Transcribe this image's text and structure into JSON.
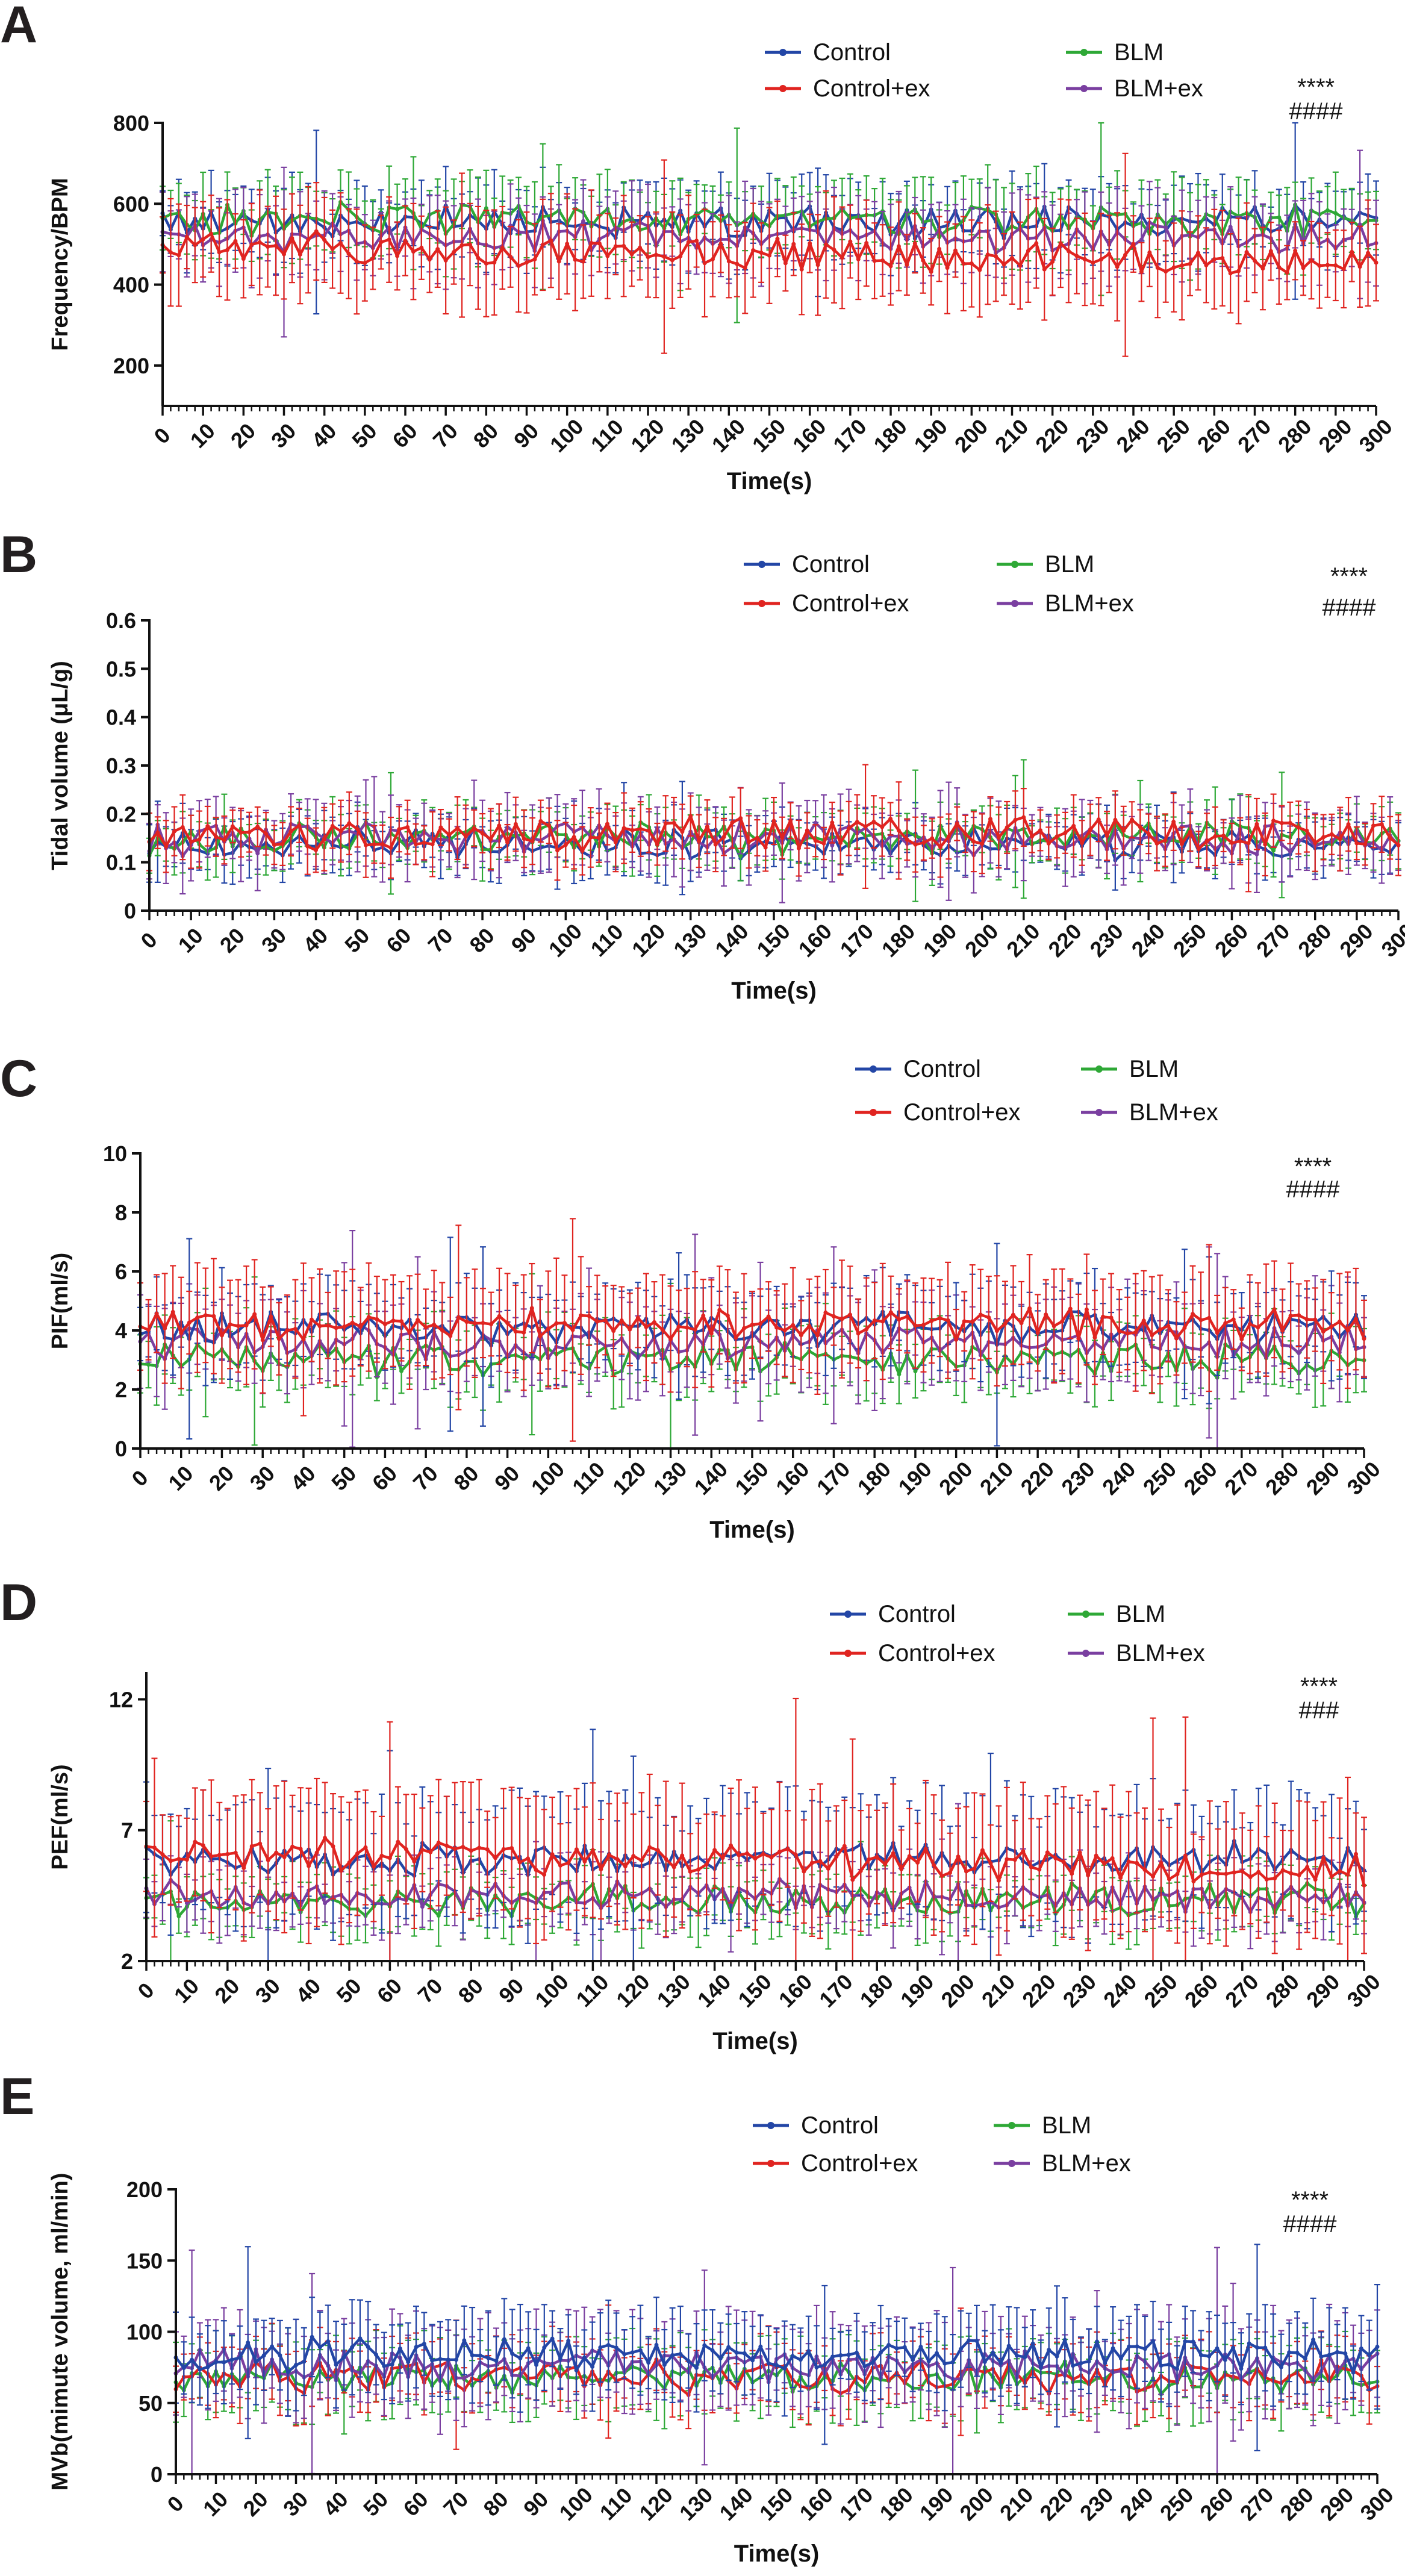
{
  "figure": {
    "colors": {
      "Control": "#2346a6",
      "Control+ex": "#e02420",
      "BLM": "#2ea836",
      "BLM+ex": "#7a3fa0"
    }
  },
  "chart_data": [
    {
      "panel": "A",
      "type": "line",
      "title": "",
      "xlabel": "Time(s)",
      "ylabel": "Frequency/BPM",
      "xlim": [
        0,
        300
      ],
      "ylim": [
        100,
        800
      ],
      "yticks": [
        200,
        400,
        600,
        800
      ],
      "xticks": [
        0,
        10,
        20,
        30,
        40,
        50,
        60,
        70,
        80,
        90,
        100,
        110,
        120,
        130,
        140,
        150,
        160,
        170,
        180,
        190,
        200,
        210,
        220,
        230,
        240,
        250,
        260,
        270,
        280,
        290,
        300
      ],
      "series": [
        {
          "name": "Control",
          "mean": 555,
          "err": 80
        },
        {
          "name": "BLM",
          "mean": 560,
          "err": 85
        },
        {
          "name": "BLM+ex",
          "mean": 515,
          "err": 85
        },
        {
          "name": "Control+ex",
          "mean": 500,
          "mean_end": 450,
          "err": 100
        }
      ],
      "legend": [
        "Control",
        "Control+ex",
        "BLM",
        "BLM+ex"
      ],
      "annotations": [
        "****",
        "####"
      ]
    },
    {
      "panel": "B",
      "type": "line",
      "title": "",
      "xlabel": "Time(s)",
      "ylabel": "Tidal volume (μL/g)",
      "xlim": [
        0,
        300
      ],
      "ylim": [
        0,
        0.6
      ],
      "yticks": [
        0.0,
        0.1,
        0.2,
        0.3,
        0.4,
        0.5,
        0.6
      ],
      "xticks": [
        0,
        10,
        20,
        30,
        40,
        50,
        60,
        70,
        80,
        90,
        100,
        110,
        120,
        130,
        140,
        150,
        160,
        170,
        180,
        190,
        200,
        210,
        220,
        230,
        240,
        250,
        260,
        270,
        280,
        290,
        300
      ],
      "series": [
        {
          "name": "Control",
          "mean": 0.14,
          "err": 0.05
        },
        {
          "name": "BLM",
          "mean": 0.15,
          "err": 0.05
        },
        {
          "name": "BLM+ex",
          "mean": 0.15,
          "err": 0.06
        },
        {
          "name": "Control+ex",
          "mean": 0.16,
          "err": 0.05
        }
      ],
      "legend": [
        "Control",
        "Control+ex",
        "BLM",
        "BLM+ex"
      ],
      "annotations": [
        "****",
        "####"
      ]
    },
    {
      "panel": "C",
      "type": "line",
      "title": "",
      "xlabel": "Time(s)",
      "ylabel": "PIF(ml/s)",
      "xlim": [
        0,
        300
      ],
      "ylim": [
        0,
        10
      ],
      "yticks": [
        0,
        2,
        4,
        6,
        8,
        10
      ],
      "xticks": [
        0,
        10,
        20,
        30,
        40,
        50,
        60,
        70,
        80,
        90,
        100,
        110,
        120,
        130,
        140,
        150,
        160,
        170,
        180,
        190,
        200,
        210,
        220,
        230,
        240,
        250,
        260,
        270,
        280,
        290,
        300
      ],
      "series": [
        {
          "name": "BLM",
          "mean": 3.0,
          "err": 1.0
        },
        {
          "name": "BLM+ex",
          "mean": 3.6,
          "err": 1.3
        },
        {
          "name": "Control",
          "mean": 4.1,
          "err": 1.2
        },
        {
          "name": "Control+ex",
          "mean": 4.2,
          "err": 1.5
        }
      ],
      "legend": [
        "Control",
        "Control+ex",
        "BLM",
        "BLM+ex"
      ],
      "annotations": [
        "****",
        "####"
      ]
    },
    {
      "panel": "D",
      "type": "line",
      "title": "",
      "xlabel": "Time(s)",
      "ylabel": "PEF(ml/s)",
      "xlim": [
        0,
        300
      ],
      "ylim": [
        2,
        13
      ],
      "yticks": [
        2,
        7,
        12
      ],
      "xticks": [
        0,
        10,
        20,
        30,
        40,
        50,
        60,
        70,
        80,
        90,
        100,
        110,
        120,
        130,
        140,
        150,
        160,
        170,
        180,
        190,
        200,
        210,
        220,
        230,
        240,
        250,
        260,
        270,
        280,
        290,
        300
      ],
      "series": [
        {
          "name": "BLM",
          "mean": 4.3,
          "err": 1.0
        },
        {
          "name": "BLM+ex",
          "mean": 4.5,
          "err": 1.1
        },
        {
          "name": "Control",
          "mean": 5.9,
          "err": 2.0
        },
        {
          "name": "Control+ex",
          "mean": 6.2,
          "mean_end": 5.5,
          "err": 2.2
        }
      ],
      "legend": [
        "Control",
        "Control+ex",
        "BLM",
        "BLM+ex"
      ],
      "annotations": [
        "****",
        "###"
      ]
    },
    {
      "panel": "E",
      "type": "line",
      "title": "",
      "xlabel": "Time(s)",
      "ylabel": "MVb(mimute volume, ml/min)",
      "xlim": [
        0,
        300
      ],
      "ylim": [
        0,
        200
      ],
      "yticks": [
        0,
        50,
        100,
        150,
        200
      ],
      "xticks": [
        0,
        10,
        20,
        30,
        40,
        50,
        60,
        70,
        80,
        90,
        100,
        110,
        120,
        130,
        140,
        150,
        160,
        170,
        180,
        190,
        200,
        210,
        220,
        230,
        240,
        250,
        260,
        270,
        280,
        290,
        300
      ],
      "series": [
        {
          "name": "BLM",
          "mean": 68,
          "err": 22
        },
        {
          "name": "Control+ex",
          "mean": 68,
          "err": 20
        },
        {
          "name": "BLM+ex",
          "mean": 76,
          "err": 28
        },
        {
          "name": "Control",
          "mean": 84,
          "err": 25
        }
      ],
      "legend": [
        "Control",
        "Control+ex",
        "BLM",
        "BLM+ex"
      ],
      "annotations": [
        "****",
        "####"
      ]
    }
  ]
}
